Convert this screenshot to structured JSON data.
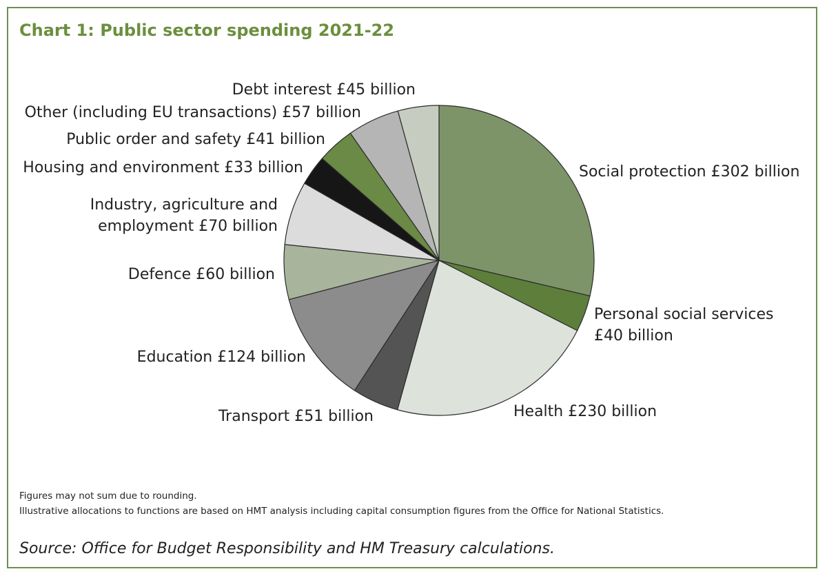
{
  "chart_data": {
    "type": "pie",
    "title": "Chart 1: Public sector spending 2021-22",
    "unit": "£ billion",
    "slices": [
      {
        "name": "Social protection",
        "value": 302,
        "label_lines": [
          "Social protection £302 billion"
        ],
        "color": "#7d9469"
      },
      {
        "name": "Personal social services",
        "value": 40,
        "label_lines": [
          "Personal social services",
          "£40 billion"
        ],
        "color": "#5e7e3b"
      },
      {
        "name": "Health",
        "value": 230,
        "label_lines": [
          "Health £230 billion"
        ],
        "color": "#dde2db"
      },
      {
        "name": "Transport",
        "value": 51,
        "label_lines": [
          "Transport £51 billion"
        ],
        "color": "#545454"
      },
      {
        "name": "Education",
        "value": 124,
        "label_lines": [
          "Education £124 billion"
        ],
        "color": "#8c8c8c"
      },
      {
        "name": "Defence",
        "value": 60,
        "label_lines": [
          "Defence £60 billion"
        ],
        "color": "#a8b49c"
      },
      {
        "name": "Industry, agriculture and employment",
        "value": 70,
        "label_lines": [
          "Industry, agriculture and",
          "employment £70 billion"
        ],
        "color": "#dcdcdc"
      },
      {
        "name": "Housing and environment",
        "value": 33,
        "label_lines": [
          "Housing and environment £33 billion"
        ],
        "color": "#161616"
      },
      {
        "name": "Public order and safety",
        "value": 41,
        "label_lines": [
          "Public order and safety £41 billion"
        ],
        "color": "#6a8a45"
      },
      {
        "name": "Other (including EU transactions)",
        "value": 57,
        "label_lines": [
          "Other (including EU transactions) £57 billion"
        ],
        "color": "#b5b5b5"
      },
      {
        "name": "Debt interest",
        "value": 45,
        "label_lines": [
          "Debt interest £45 billion"
        ],
        "color": "#c6cdc0"
      }
    ],
    "start": "top",
    "direction": "clockwise"
  },
  "notes": [
    "Figures may not sum due to rounding.",
    "Illustrative allocations to functions are based on HMT analysis including capital consumption figures from the Office for National Statistics."
  ],
  "source": "Source: Office for Budget Responsibility and HM Treasury calculations."
}
